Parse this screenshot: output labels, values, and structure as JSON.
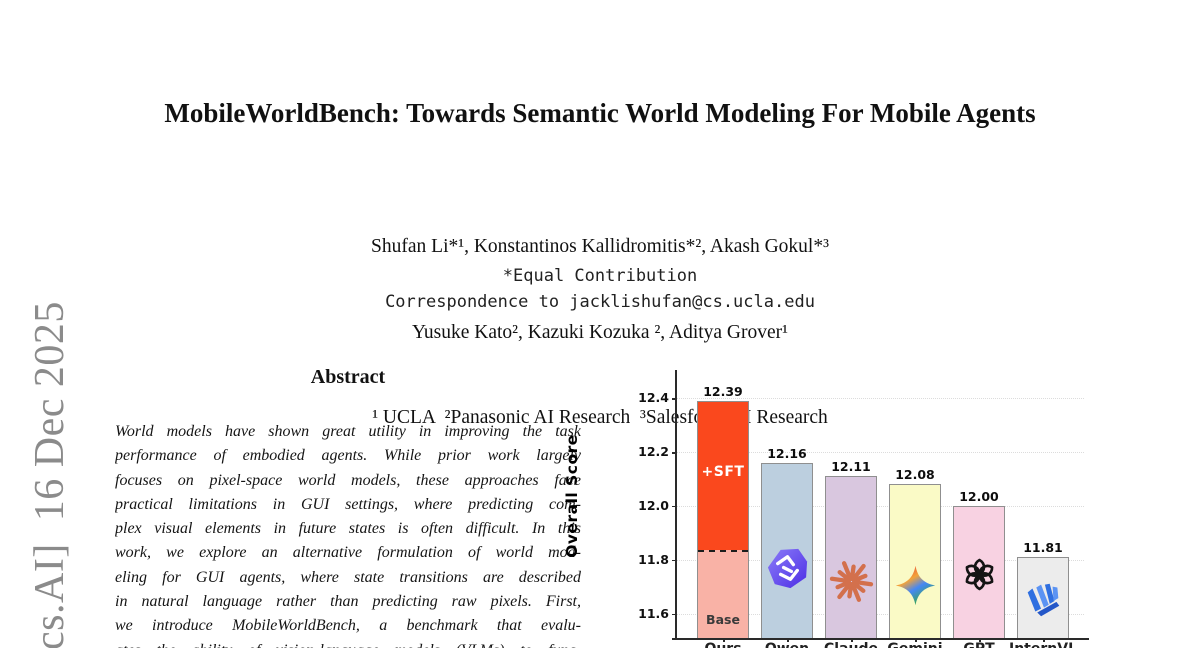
{
  "watermark": {
    "text": "cs.AI]  16 Dec 2025"
  },
  "paper": {
    "title": "MobileWorldBench: Towards Semantic World Modeling For Mobile Agents",
    "authors_line1": "Shufan Li*¹, Konstantinos Kallidromitis*², Akash Gokul*³",
    "authors_line2": "Yusuke Kato², Kazuki Kozuka ², Aditya Grover¹",
    "affiliations": "¹ UCLA  ²Panasonic AI Research  ³Salesforce AI Research",
    "equal_contribution": "*Equal Contribution",
    "correspondence": "Correspondence to jacklishufan@cs.ucla.edu"
  },
  "abstract": {
    "heading": "Abstract",
    "lines": [
      "World models have shown great utility in improving the task",
      "performance of embodied agents. While prior work largely",
      "focuses on pixel-space world models, these approaches face",
      "practical limitations in GUI settings, where predicting com-",
      "plex visual elements in future states is often difficult. In this",
      "work, we explore an alternative formulation of world mod-",
      "eling for GUI agents, where state transitions are described",
      "in natural language rather than predicting raw pixels. First,",
      "we introduce MobileWorldBench, a benchmark that evalu-",
      "ates the ability of vision-language models (VLMs) to func-"
    ]
  },
  "chart_data": {
    "type": "bar",
    "title": "",
    "xlabel": "",
    "ylabel": "Overall Score",
    "ylim": [
      11.51,
      12.497
    ],
    "yticks": [
      11.6,
      11.8,
      12.0,
      12.2,
      12.4
    ],
    "grid": true,
    "bar_edge_color": "#8f8f8f",
    "categories": [
      "Ours",
      "Qwen",
      "Claude",
      "Gemini",
      "GPT",
      "InternVL"
    ],
    "values": [
      12.39,
      12.16,
      12.11,
      12.08,
      12.0,
      11.81
    ],
    "bars": [
      {
        "category": "Ours",
        "value": 12.39,
        "label": "12.39",
        "color": "#f9b2a6",
        "logo": null,
        "stack": {
          "base_value": 11.84,
          "base_label": "Base",
          "base_color": "#f9b2a6",
          "top_label": "+SFT",
          "top_color": "#fa481d"
        }
      },
      {
        "category": "Qwen",
        "value": 12.16,
        "label": "12.16",
        "color": "#bccfdf",
        "logo": "qwen"
      },
      {
        "category": "Claude",
        "value": 12.11,
        "label": "12.11",
        "color": "#d9c7df",
        "logo": "claude"
      },
      {
        "category": "Gemini",
        "value": 12.08,
        "label": "12.08",
        "color": "#fafac6",
        "logo": "gemini"
      },
      {
        "category": "GPT",
        "value": 12.0,
        "label": "12.00",
        "color": "#f8d2e2",
        "logo": "gpt"
      },
      {
        "category": "InternVL",
        "value": 11.81,
        "label": "11.81",
        "color": "#ececec",
        "logo": "internvl"
      }
    ]
  }
}
